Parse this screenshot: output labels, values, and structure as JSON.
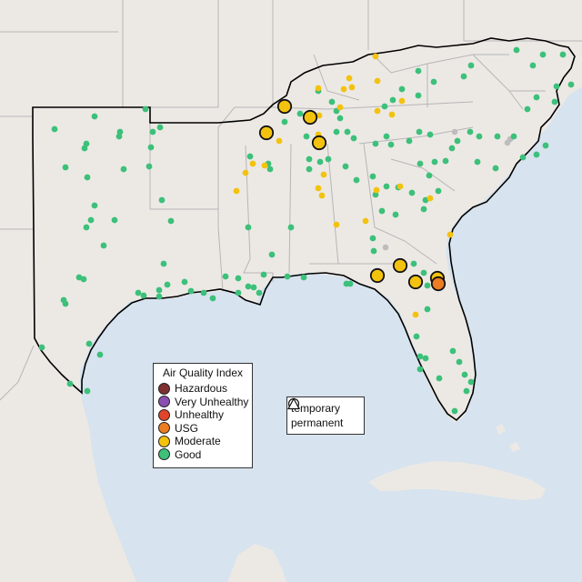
{
  "legend_aqi": {
    "title": "Air Quality Index",
    "items": [
      {
        "label": "Hazardous",
        "color": "#7e2f2f"
      },
      {
        "label": "Very Unhealthy",
        "color": "#8b4fb0"
      },
      {
        "label": "Unhealthy",
        "color": "#e0452b"
      },
      {
        "label": "USG",
        "color": "#ec7d22"
      },
      {
        "label": "Moderate",
        "color": "#f3c20f"
      },
      {
        "label": "Good",
        "color": "#3cc07a"
      }
    ]
  },
  "legend_type": {
    "items": [
      {
        "label": "temporary",
        "symbol": "circle-icon"
      },
      {
        "label": "permanent",
        "symbol": "triangle-icon"
      }
    ]
  },
  "colors": {
    "water": "#d7e3ee",
    "land": "#ece9e5",
    "border": "#000000",
    "state_lines": "#b6b6b6",
    "good": "#3cc07a",
    "moderate": "#f3c20f",
    "usg": "#ec7d22",
    "gray": "#bdbdbd"
  }
}
